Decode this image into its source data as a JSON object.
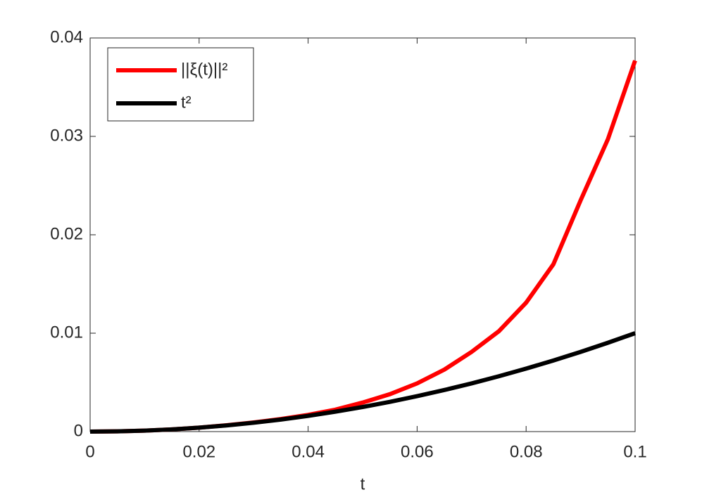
{
  "chart_data": {
    "type": "line",
    "xlabel": "t",
    "x": [
      0,
      0.005,
      0.01,
      0.015,
      0.02,
      0.025,
      0.03,
      0.035,
      0.04,
      0.045,
      0.05,
      0.055,
      0.06,
      0.065,
      0.07,
      0.075,
      0.08,
      0.085,
      0.09,
      0.095,
      0.1
    ],
    "series": [
      {
        "name": "||ξ(t)||²",
        "color": "#ff0000",
        "values": [
          0,
          2.5e-05,
          0.0001,
          0.000226,
          0.000405,
          0.00064,
          0.00093,
          0.00128,
          0.0017,
          0.00223,
          0.00295,
          0.0038,
          0.0049,
          0.0063,
          0.0081,
          0.0102,
          0.0131,
          0.017,
          0.0235,
          0.0297,
          0.0377
        ]
      },
      {
        "name": "t²",
        "color": "#000000",
        "values": [
          0,
          2.5e-05,
          0.0001,
          0.000225,
          0.0004,
          0.000625,
          0.0009,
          0.001225,
          0.0016,
          0.002025,
          0.0025,
          0.003025,
          0.0036,
          0.004225,
          0.0049,
          0.005625,
          0.0064,
          0.007225,
          0.0081,
          0.009025,
          0.01
        ]
      }
    ],
    "xlim": [
      0,
      0.1
    ],
    "xticks": [
      0,
      0.02,
      0.04,
      0.06,
      0.08,
      0.1
    ],
    "ylim": [
      0,
      0.04
    ],
    "yticks": [
      0,
      0.01,
      0.02,
      0.03,
      0.04
    ],
    "legend": "upper-left"
  }
}
